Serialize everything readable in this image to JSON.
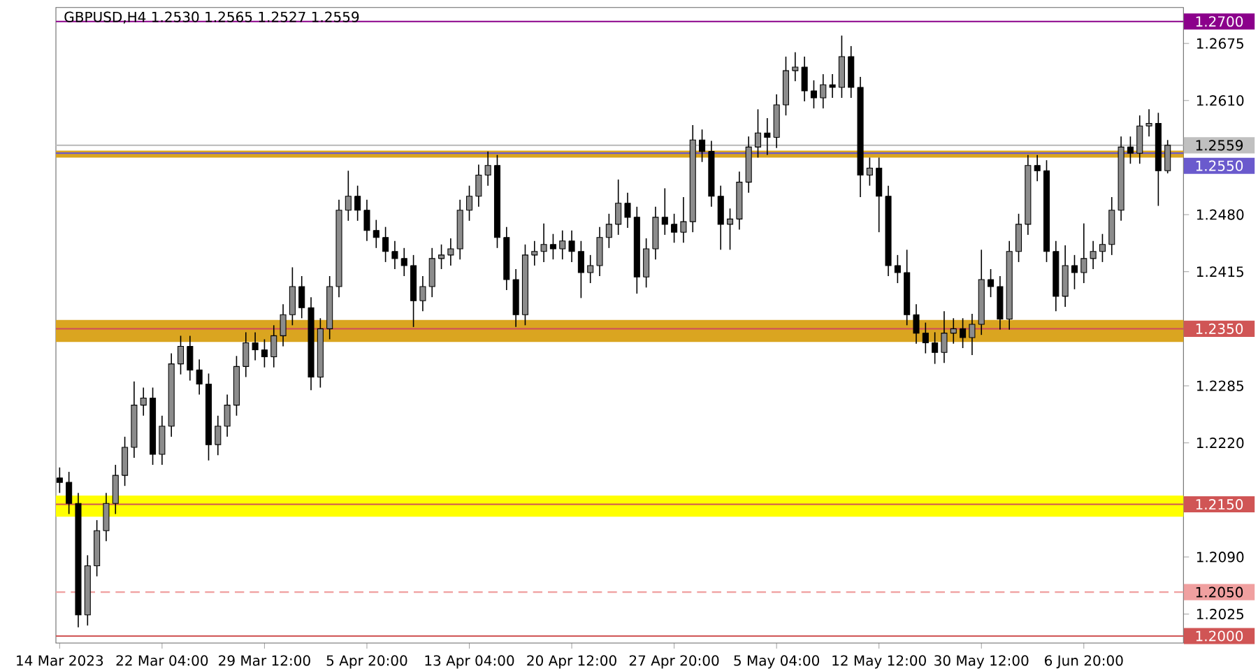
{
  "chart_data": {
    "type": "candlestick",
    "title": "GBPUSD,H4  1.2530 1.2565 1.2527 1.2559",
    "color": "#000000",
    "categories": [
      "14 Mar 2023",
      null,
      null,
      null,
      null,
      null,
      null,
      null,
      null,
      null,
      null,
      "22 Mar 04:00",
      null,
      null,
      null,
      null,
      null,
      null,
      null,
      null,
      null,
      null,
      "29 Mar 12:00",
      null,
      null,
      null,
      null,
      null,
      null,
      null,
      null,
      null,
      null,
      "5 Apr 20:00",
      null,
      null,
      null,
      null,
      null,
      null,
      null,
      null,
      null,
      null,
      "13 Apr 04:00",
      null,
      null,
      null,
      null,
      null,
      null,
      null,
      null,
      null,
      null,
      "20 Apr 12:00",
      null,
      null,
      null,
      null,
      null,
      null,
      null,
      null,
      null,
      null,
      "27 Apr 20:00",
      null,
      null,
      null,
      null,
      null,
      null,
      null,
      null,
      null,
      null,
      "5 May 04:00",
      null,
      null,
      null,
      null,
      null,
      null,
      null,
      null,
      null,
      null,
      "12 May 12:00",
      null,
      null,
      null,
      null,
      null,
      null,
      null,
      null,
      null,
      null,
      "30 May 12:00",
      null,
      null,
      null,
      null,
      null,
      null,
      null,
      null,
      null,
      null,
      "6 Jun 20:00",
      null,
      null,
      null,
      null,
      null,
      null,
      null,
      null,
      null
    ],
    "ohlc": [
      [
        1.218,
        1.2192,
        1.2163,
        1.2175
      ],
      [
        1.2175,
        1.2187,
        1.2139,
        1.2151
      ],
      [
        1.2151,
        1.2163,
        1.201,
        1.2024
      ],
      [
        1.2024,
        1.2092,
        1.2012,
        1.208
      ],
      [
        1.208,
        1.2132,
        1.2068,
        1.212
      ],
      [
        1.212,
        1.2163,
        1.2108,
        1.2151
      ],
      [
        1.2151,
        1.2195,
        1.2139,
        1.2183
      ],
      [
        1.2183,
        1.2227,
        1.2171,
        1.2215
      ],
      [
        1.2215,
        1.229,
        1.2203,
        1.2263
      ],
      [
        1.2263,
        1.2283,
        1.2251,
        1.2271
      ],
      [
        1.2271,
        1.2283,
        1.2195,
        1.2207
      ],
      [
        1.2207,
        1.2251,
        1.2195,
        1.2239
      ],
      [
        1.2239,
        1.2322,
        1.2227,
        1.231
      ],
      [
        1.231,
        1.2342,
        1.2298,
        1.233
      ],
      [
        1.233,
        1.2342,
        1.2291,
        1.2303
      ],
      [
        1.2303,
        1.2315,
        1.2275,
        1.2287
      ],
      [
        1.2287,
        1.2299,
        1.22,
        1.2218
      ],
      [
        1.2218,
        1.2251,
        1.2206,
        1.2239
      ],
      [
        1.2239,
        1.2275,
        1.2227,
        1.2263
      ],
      [
        1.2263,
        1.2319,
        1.2251,
        1.2307
      ],
      [
        1.2307,
        1.2346,
        1.2295,
        1.2334
      ],
      [
        1.2334,
        1.2346,
        1.2314,
        1.2326
      ],
      [
        1.2326,
        1.2338,
        1.2306,
        1.2318
      ],
      [
        1.2318,
        1.2354,
        1.2306,
        1.2342
      ],
      [
        1.2342,
        1.2378,
        1.233,
        1.2366
      ],
      [
        1.2366,
        1.242,
        1.2354,
        1.2398
      ],
      [
        1.2398,
        1.241,
        1.2362,
        1.2374
      ],
      [
        1.2374,
        1.2386,
        1.228,
        1.2295
      ],
      [
        1.2295,
        1.2362,
        1.2283,
        1.235
      ],
      [
        1.235,
        1.241,
        1.2338,
        1.2398
      ],
      [
        1.2398,
        1.2497,
        1.2386,
        1.2485
      ],
      [
        1.2485,
        1.253,
        1.2473,
        1.2501
      ],
      [
        1.2501,
        1.2513,
        1.2473,
        1.2485
      ],
      [
        1.2485,
        1.2497,
        1.245,
        1.2462
      ],
      [
        1.2462,
        1.2474,
        1.2442,
        1.2454
      ],
      [
        1.2454,
        1.2466,
        1.2426,
        1.2438
      ],
      [
        1.2438,
        1.245,
        1.2418,
        1.243
      ],
      [
        1.243,
        1.2442,
        1.241,
        1.2422
      ],
      [
        1.2422,
        1.2434,
        1.2352,
        1.2382
      ],
      [
        1.2382,
        1.241,
        1.237,
        1.2398
      ],
      [
        1.2398,
        1.2442,
        1.2386,
        1.243
      ],
      [
        1.243,
        1.2446,
        1.2418,
        1.2434
      ],
      [
        1.2434,
        1.2453,
        1.2422,
        1.2441
      ],
      [
        1.2441,
        1.2497,
        1.2429,
        1.2485
      ],
      [
        1.2485,
        1.2513,
        1.2473,
        1.2501
      ],
      [
        1.2501,
        1.2537,
        1.2489,
        1.2525
      ],
      [
        1.2525,
        1.2552,
        1.2513,
        1.2536
      ],
      [
        1.2536,
        1.2548,
        1.2442,
        1.2454
      ],
      [
        1.2454,
        1.2466,
        1.2394,
        1.2406
      ],
      [
        1.2406,
        1.2418,
        1.2352,
        1.2366
      ],
      [
        1.2366,
        1.2446,
        1.2354,
        1.2434
      ],
      [
        1.2434,
        1.245,
        1.2422,
        1.2438
      ],
      [
        1.2438,
        1.247,
        1.2426,
        1.2446
      ],
      [
        1.2446,
        1.2458,
        1.2429,
        1.2441
      ],
      [
        1.2441,
        1.2462,
        1.2429,
        1.245
      ],
      [
        1.245,
        1.2462,
        1.2426,
        1.2438
      ],
      [
        1.2438,
        1.245,
        1.2385,
        1.2414
      ],
      [
        1.2414,
        1.2434,
        1.2402,
        1.2422
      ],
      [
        1.2422,
        1.2466,
        1.241,
        1.2454
      ],
      [
        1.2454,
        1.2481,
        1.2442,
        1.2469
      ],
      [
        1.2469,
        1.252,
        1.2457,
        1.2493
      ],
      [
        1.2493,
        1.2505,
        1.2465,
        1.2477
      ],
      [
        1.2477,
        1.2489,
        1.239,
        1.2409
      ],
      [
        1.2409,
        1.2453,
        1.2397,
        1.2441
      ],
      [
        1.2441,
        1.2489,
        1.2429,
        1.2477
      ],
      [
        1.2477,
        1.251,
        1.2457,
        1.2469
      ],
      [
        1.2469,
        1.2481,
        1.2448,
        1.246
      ],
      [
        1.246,
        1.25,
        1.2448,
        1.2472
      ],
      [
        1.2472,
        1.2582,
        1.246,
        1.2565
      ],
      [
        1.2565,
        1.2577,
        1.254,
        1.2552
      ],
      [
        1.2552,
        1.2564,
        1.2489,
        1.2501
      ],
      [
        1.2501,
        1.2513,
        1.244,
        1.2469
      ],
      [
        1.2469,
        1.2487,
        1.244,
        1.2475
      ],
      [
        1.2475,
        1.2529,
        1.2463,
        1.2517
      ],
      [
        1.2517,
        1.2569,
        1.2505,
        1.2557
      ],
      [
        1.2557,
        1.26,
        1.2545,
        1.2573
      ],
      [
        1.2573,
        1.259,
        1.2548,
        1.2568
      ],
      [
        1.2568,
        1.2617,
        1.2556,
        1.2605
      ],
      [
        1.2605,
        1.266,
        1.2593,
        1.2644
      ],
      [
        1.2644,
        1.2665,
        1.2632,
        1.2648
      ],
      [
        1.2648,
        1.266,
        1.2609,
        1.2621
      ],
      [
        1.2621,
        1.2633,
        1.2601,
        1.2613
      ],
      [
        1.2613,
        1.264,
        1.2601,
        1.2628
      ],
      [
        1.2628,
        1.264,
        1.2613,
        1.2625
      ],
      [
        1.2625,
        1.2684,
        1.2613,
        1.266
      ],
      [
        1.266,
        1.2672,
        1.2613,
        1.2625
      ],
      [
        1.2625,
        1.2637,
        1.25,
        1.2525
      ],
      [
        1.2525,
        1.2545,
        1.2513,
        1.2533
      ],
      [
        1.2533,
        1.2545,
        1.246,
        1.2501
      ],
      [
        1.2501,
        1.2513,
        1.241,
        1.2422
      ],
      [
        1.2422,
        1.2434,
        1.2402,
        1.2414
      ],
      [
        1.2414,
        1.244,
        1.2354,
        1.2366
      ],
      [
        1.2366,
        1.2378,
        1.2333,
        1.2345
      ],
      [
        1.2345,
        1.2357,
        1.2322,
        1.2334
      ],
      [
        1.2334,
        1.2346,
        1.231,
        1.2323
      ],
      [
        1.2323,
        1.237,
        1.2311,
        1.2345
      ],
      [
        1.2345,
        1.2362,
        1.2333,
        1.235
      ],
      [
        1.235,
        1.2362,
        1.2328,
        1.234
      ],
      [
        1.234,
        1.2367,
        1.232,
        1.2355
      ],
      [
        1.2355,
        1.244,
        1.2343,
        1.2406
      ],
      [
        1.2406,
        1.2418,
        1.2386,
        1.2398
      ],
      [
        1.2398,
        1.241,
        1.2349,
        1.2361
      ],
      [
        1.2361,
        1.245,
        1.2349,
        1.2438
      ],
      [
        1.2438,
        1.2481,
        1.2426,
        1.2469
      ],
      [
        1.2469,
        1.2548,
        1.2457,
        1.2536
      ],
      [
        1.2536,
        1.2548,
        1.2518,
        1.253
      ],
      [
        1.253,
        1.2542,
        1.2426,
        1.2438
      ],
      [
        1.2438,
        1.245,
        1.237,
        1.2387
      ],
      [
        1.2387,
        1.2445,
        1.2375,
        1.2422
      ],
      [
        1.2422,
        1.2434,
        1.2395,
        1.2414
      ],
      [
        1.2414,
        1.247,
        1.2402,
        1.243
      ],
      [
        1.243,
        1.245,
        1.2418,
        1.2438
      ],
      [
        1.2438,
        1.2458,
        1.2426,
        1.2446
      ],
      [
        1.2446,
        1.25,
        1.2434,
        1.2485
      ],
      [
        1.2485,
        1.2569,
        1.2473,
        1.2557
      ],
      [
        1.2557,
        1.2569,
        1.2538,
        1.255
      ],
      [
        1.255,
        1.2593,
        1.2538,
        1.2581
      ],
      [
        1.2581,
        1.26,
        1.2569,
        1.2584
      ],
      [
        1.2584,
        1.2596,
        1.249,
        1.253
      ],
      [
        1.253,
        1.2565,
        1.2527,
        1.2559
      ]
    ],
    "ylim": [
      1.1992,
      1.2716
    ],
    "yticks": [
      {
        "value": 1.2675,
        "label": "1.2675"
      },
      {
        "value": 1.261,
        "label": "1.2610"
      },
      {
        "value": 1.248,
        "label": "1.2480"
      },
      {
        "value": 1.2415,
        "label": "1.2415"
      },
      {
        "value": 1.2285,
        "label": "1.2285"
      },
      {
        "value": 1.222,
        "label": "1.2220"
      },
      {
        "value": 1.209,
        "label": "1.2090"
      },
      {
        "value": 1.2025,
        "label": "1.2025"
      }
    ],
    "bands": [
      {
        "axis": "y",
        "from": 1.2545,
        "to": 1.2553,
        "color": "#daa520"
      },
      {
        "axis": "y",
        "from": 1.2335,
        "to": 1.236,
        "color": "#daa520"
      },
      {
        "axis": "y",
        "from": 1.2136,
        "to": 1.216,
        "color": "#ffff00"
      }
    ],
    "ref_lines": [
      {
        "axis": "y",
        "value": 1.27,
        "label": "1.2700",
        "color": "#8b008b"
      },
      {
        "axis": "y",
        "value": 1.2559,
        "label": "1.2559",
        "color": "#c0c0c0"
      },
      {
        "axis": "y",
        "value": 1.255,
        "label": "1.2550",
        "color": "#6a5acd"
      },
      {
        "axis": "y",
        "value": 1.235,
        "label": "1.2350",
        "color": "#d05555"
      },
      {
        "axis": "y",
        "value": 1.215,
        "label": "1.2150",
        "color": "#d05555"
      },
      {
        "axis": "y",
        "value": 1.205,
        "label": "1.2050",
        "color": "#f0a0a0",
        "line_style": "dashed"
      },
      {
        "axis": "y",
        "value": 1.2,
        "label": "1.2000",
        "color": "#d05555"
      }
    ]
  }
}
